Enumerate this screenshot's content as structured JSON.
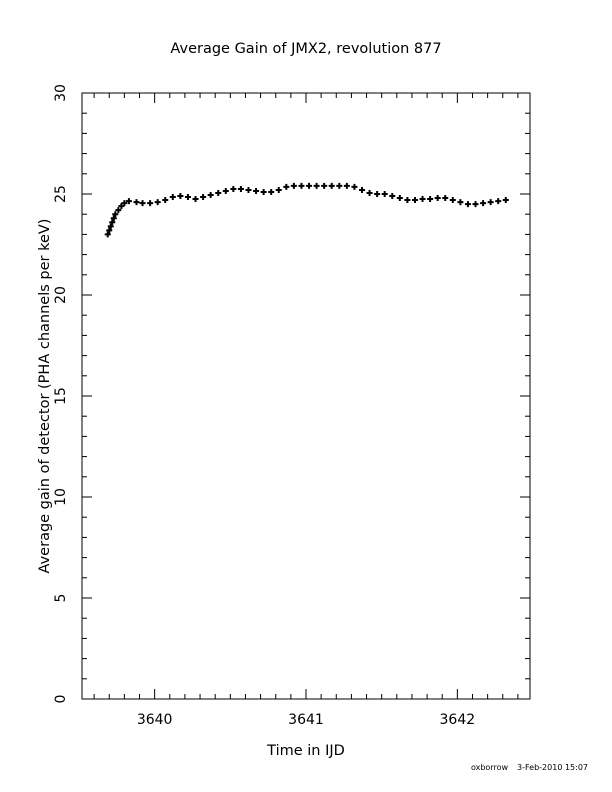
{
  "chart_data": {
    "type": "scatter",
    "title": "Average Gain of JMX2, revolution 877",
    "xlabel": "Time in IJD",
    "ylabel": "Average gain of detector (PHA channels per keV)",
    "xlim": [
      3639.52,
      3642.48
    ],
    "ylim": [
      0,
      30
    ],
    "x_major_ticks": [
      3640,
      3641,
      3642
    ],
    "x_minor_step": 0.1,
    "y_major_ticks": [
      0,
      5,
      10,
      15,
      20,
      25,
      30
    ],
    "y_minor_step": 1,
    "marker": "plus",
    "grid": false,
    "series": [
      {
        "points": [
          [
            3639.69,
            23.0
          ],
          [
            3639.7,
            23.2
          ],
          [
            3639.71,
            23.4
          ],
          [
            3639.72,
            23.6
          ],
          [
            3639.73,
            23.8
          ],
          [
            3639.74,
            24.0
          ],
          [
            3639.76,
            24.2
          ],
          [
            3639.78,
            24.4
          ],
          [
            3639.8,
            24.55
          ],
          [
            3639.83,
            24.65
          ],
          [
            3639.88,
            24.6
          ],
          [
            3639.92,
            24.55
          ],
          [
            3639.97,
            24.55
          ],
          [
            3640.02,
            24.6
          ],
          [
            3640.07,
            24.7
          ],
          [
            3640.12,
            24.85
          ],
          [
            3640.17,
            24.9
          ],
          [
            3640.22,
            24.85
          ],
          [
            3640.27,
            24.75
          ],
          [
            3640.32,
            24.85
          ],
          [
            3640.37,
            24.95
          ],
          [
            3640.42,
            25.05
          ],
          [
            3640.47,
            25.15
          ],
          [
            3640.52,
            25.25
          ],
          [
            3640.57,
            25.25
          ],
          [
            3640.62,
            25.2
          ],
          [
            3640.67,
            25.15
          ],
          [
            3640.72,
            25.1
          ],
          [
            3640.77,
            25.1
          ],
          [
            3640.82,
            25.2
          ],
          [
            3640.87,
            25.35
          ],
          [
            3640.92,
            25.4
          ],
          [
            3640.97,
            25.4
          ],
          [
            3641.02,
            25.4
          ],
          [
            3641.07,
            25.4
          ],
          [
            3641.12,
            25.4
          ],
          [
            3641.17,
            25.4
          ],
          [
            3641.22,
            25.4
          ],
          [
            3641.27,
            25.4
          ],
          [
            3641.32,
            25.35
          ],
          [
            3641.37,
            25.2
          ],
          [
            3641.42,
            25.05
          ],
          [
            3641.47,
            25.0
          ],
          [
            3641.52,
            25.0
          ],
          [
            3641.57,
            24.9
          ],
          [
            3641.62,
            24.8
          ],
          [
            3641.67,
            24.7
          ],
          [
            3641.72,
            24.7
          ],
          [
            3641.77,
            24.75
          ],
          [
            3641.82,
            24.75
          ],
          [
            3641.87,
            24.8
          ],
          [
            3641.92,
            24.8
          ],
          [
            3641.97,
            24.7
          ],
          [
            3642.02,
            24.6
          ],
          [
            3642.07,
            24.5
          ],
          [
            3642.12,
            24.5
          ],
          [
            3642.17,
            24.55
          ],
          [
            3642.22,
            24.6
          ],
          [
            3642.27,
            24.65
          ],
          [
            3642.32,
            24.7
          ]
        ]
      }
    ]
  },
  "footer": {
    "user": "oxborrow",
    "timestamp": "3-Feb-2010 15:07"
  }
}
